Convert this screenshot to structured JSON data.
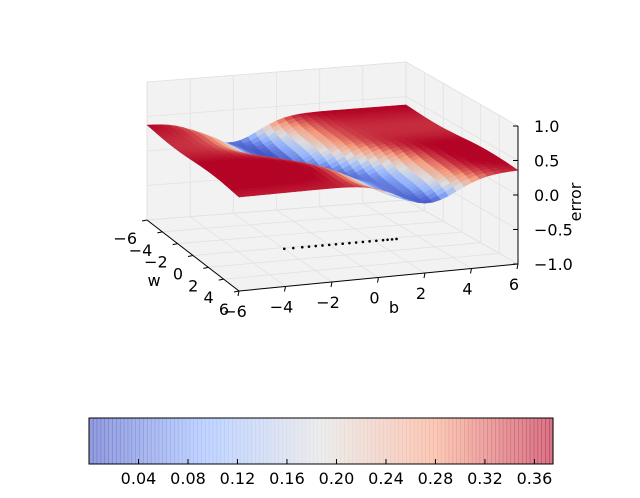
{
  "chart_data": {
    "type": "surface3d",
    "title": "",
    "axes": {
      "x": {
        "label": "w",
        "ticks": [
          -6,
          -4,
          -2,
          0,
          2,
          4,
          6
        ],
        "range": [
          -6,
          6
        ]
      },
      "y": {
        "label": "b",
        "ticks": [
          -6,
          -4,
          -2,
          0,
          2,
          4,
          6
        ],
        "range": [
          -6,
          6
        ]
      },
      "z": {
        "label": "error",
        "ticks": [
          -1.0,
          -0.5,
          0.0,
          0.5,
          1.0
        ],
        "tick_labels": [
          "−1.0",
          "−0.5",
          "0.0",
          "0.5",
          "1.0"
        ],
        "range": [
          -1.0,
          1.0
        ]
      }
    },
    "surface": {
      "description_values": "error surface over w and b, plateau near 0.37 with a valley near 0",
      "z_min": 0.0,
      "z_max": 0.37,
      "colormap": "coolwarm"
    },
    "descent_path": {
      "points": [
        {
          "w": 0.2,
          "b": -2.0
        },
        {
          "w": 0.2,
          "b": -1.6
        },
        {
          "w": 0.2,
          "b": -1.2
        },
        {
          "w": 0.2,
          "b": -0.9
        },
        {
          "w": 0.2,
          "b": -0.6
        },
        {
          "w": 0.2,
          "b": -0.3
        },
        {
          "w": 0.2,
          "b": 0.0
        },
        {
          "w": 0.2,
          "b": 0.3
        },
        {
          "w": 0.2,
          "b": 0.6
        },
        {
          "w": 0.2,
          "b": 0.9
        },
        {
          "w": 0.2,
          "b": 1.2
        },
        {
          "w": 0.2,
          "b": 1.5
        },
        {
          "w": 0.2,
          "b": 1.8
        },
        {
          "w": 0.2,
          "b": 2.1
        },
        {
          "w": 0.2,
          "b": 2.4
        },
        {
          "w": 0.2,
          "b": 2.6
        },
        {
          "w": 0.2,
          "b": 2.8
        },
        {
          "w": 0.2,
          "b": 3.0
        }
      ],
      "color": "#000000"
    },
    "colorbar": {
      "orientation": "horizontal",
      "ticks": [
        0.04,
        0.08,
        0.12,
        0.16,
        0.2,
        0.24,
        0.28,
        0.32,
        0.36
      ],
      "tick_labels": [
        "0.04",
        "0.08",
        "0.12",
        "0.16",
        "0.20",
        "0.24",
        "0.28",
        "0.32",
        "0.36"
      ],
      "range": [
        0.0,
        0.375
      ]
    },
    "grid": true
  },
  "colors": {
    "cold": "#3b4cc0",
    "neutral": "#dddddd",
    "hot": "#b40426",
    "pane": "#f2f2f2",
    "grid": "#e6e6e6"
  }
}
